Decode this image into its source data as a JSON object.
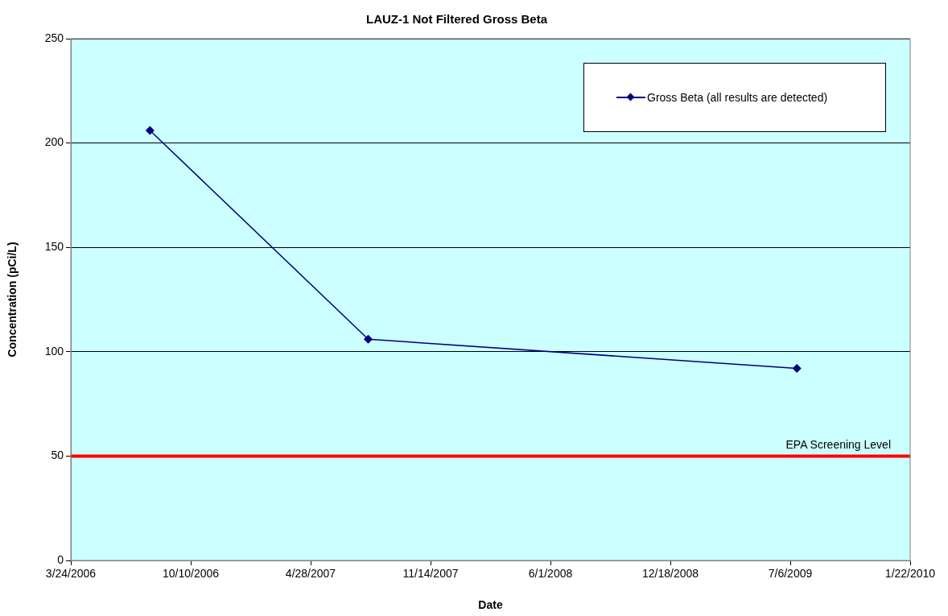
{
  "chart_data": {
    "type": "line",
    "title": "LAUZ-1 Not Filtered Gross Beta",
    "xlabel": "Date",
    "ylabel": "Concentration (pCi/L)",
    "x": [
      "2006-08-03",
      "2007-08-02",
      "2009-07-17"
    ],
    "series": [
      {
        "name": "Gross Beta (all results are detected)",
        "color": "#000080",
        "values": [
          206,
          106,
          92
        ]
      }
    ],
    "xlim": [
      "2006-03-24",
      "2010-01-22"
    ],
    "xticks": [
      {
        "value": "2006-03-24",
        "label": "3/24/2006"
      },
      {
        "value": "2006-10-10",
        "label": "10/10/2006"
      },
      {
        "value": "2007-04-28",
        "label": "4/28/2007"
      },
      {
        "value": "2007-11-14",
        "label": "11/14/2007"
      },
      {
        "value": "2008-06-01",
        "label": "6/1/2008"
      },
      {
        "value": "2008-12-18",
        "label": "12/18/2008"
      },
      {
        "value": "2009-07-06",
        "label": "7/6/2009"
      },
      {
        "value": "2010-01-22",
        "label": "1/22/2010"
      }
    ],
    "ylim": [
      0,
      250
    ],
    "yticks": [
      0,
      50,
      100,
      150,
      200,
      250
    ],
    "ref_lines": [
      {
        "axis": "y",
        "value": 50,
        "label": "EPA Screening Level",
        "color": "#ff0000"
      }
    ],
    "grid": "y",
    "legend": "top right",
    "marker": "diamond",
    "line_style": "solid"
  }
}
